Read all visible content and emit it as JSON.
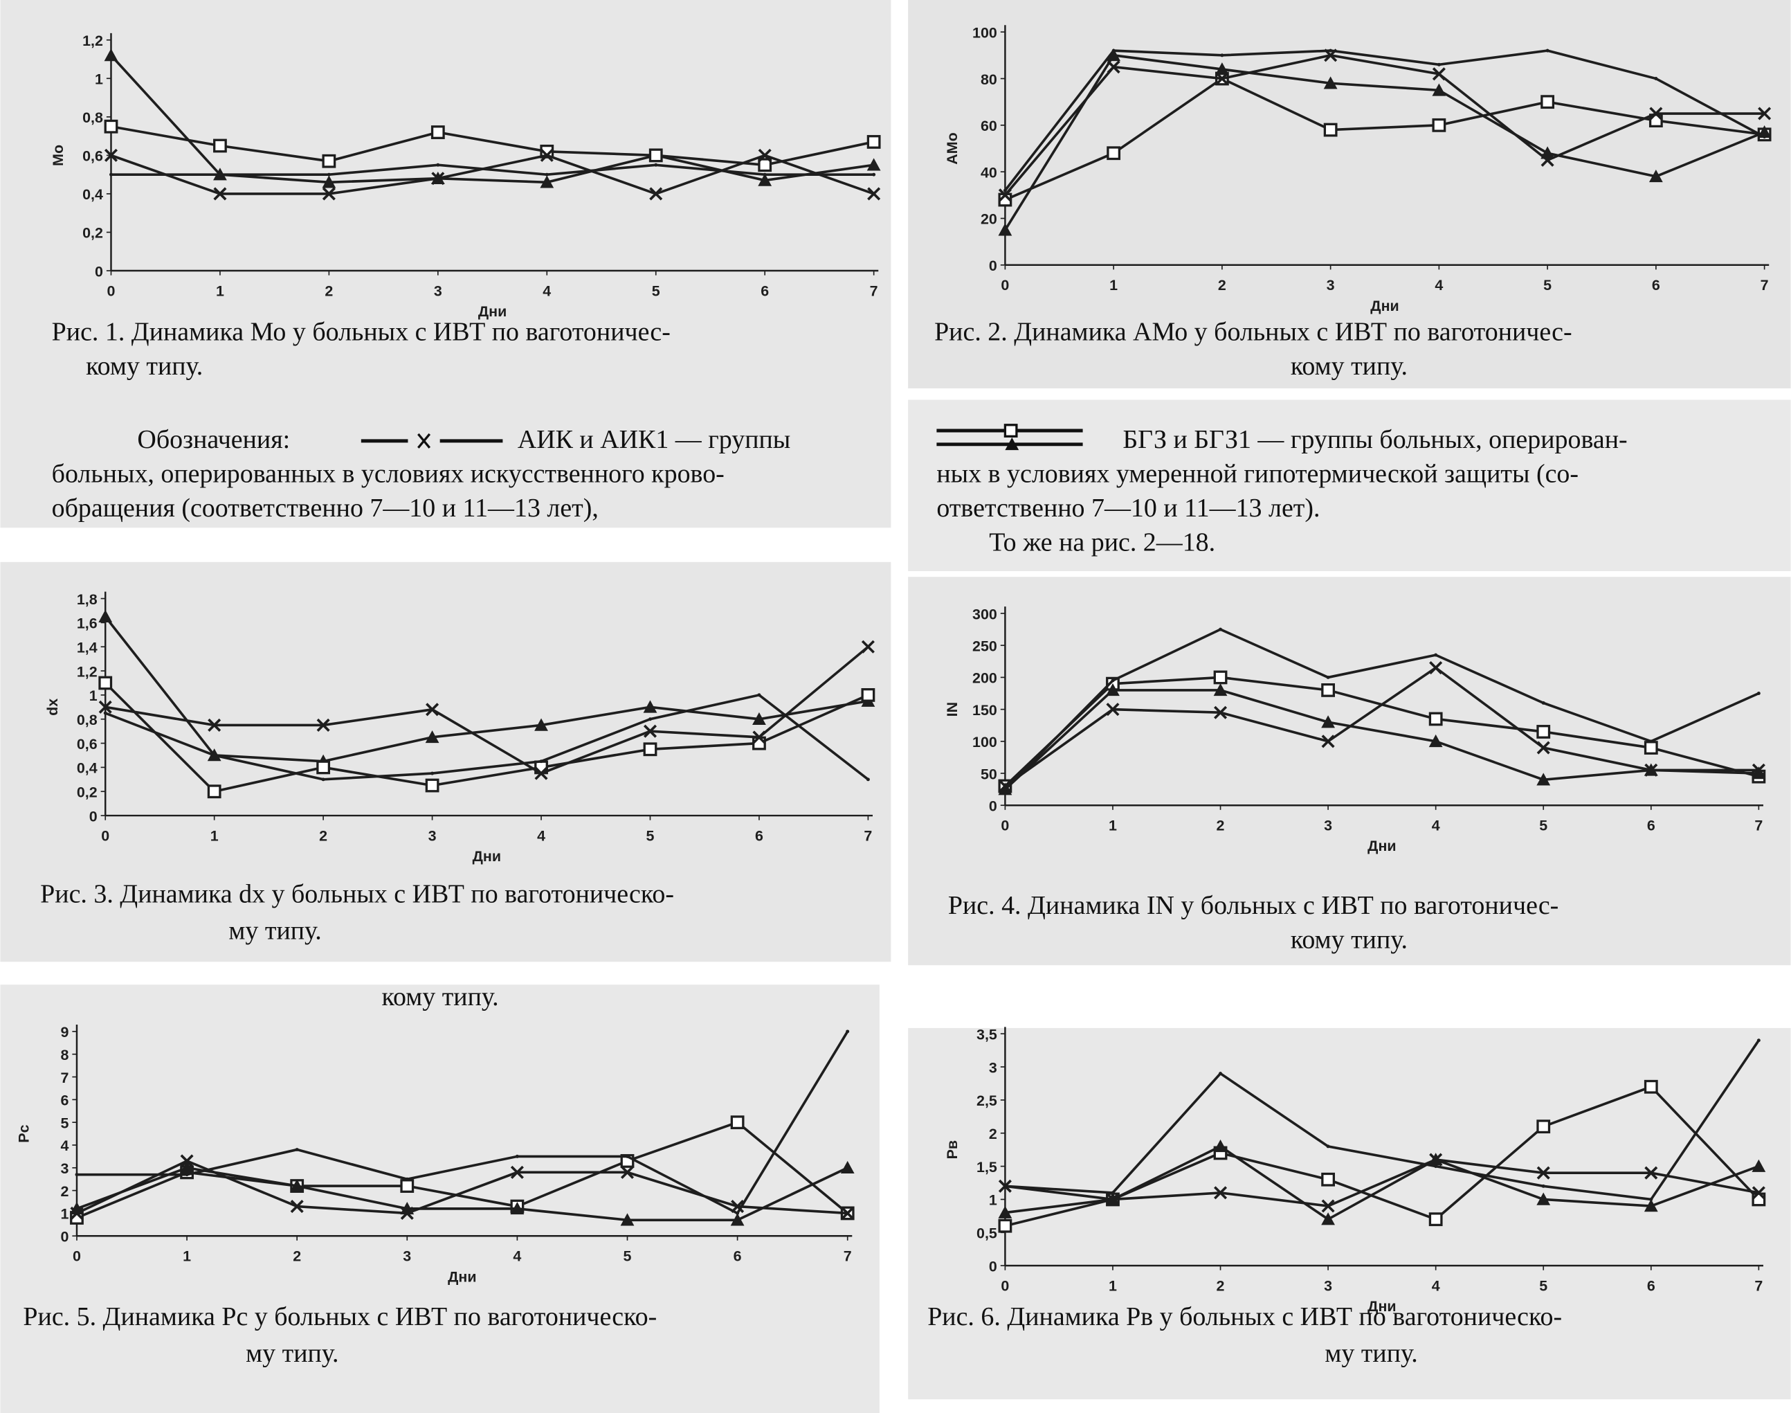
{
  "chart_data": [
    {
      "type": "line",
      "xlabel": "Дни",
      "ylabel": "Мо",
      "caption": [
        "Рис. 1. Динамика Мо у больных с ИВТ по ваготоничес-",
        "кому типу."
      ],
      "x": [
        0,
        1,
        2,
        3,
        4,
        5,
        6,
        7
      ],
      "xlim": [
        0,
        7
      ],
      "xticks": [
        0,
        1,
        2,
        3,
        4,
        5,
        6,
        7
      ],
      "ylim": [
        0,
        1.2
      ],
      "yticks": [
        0,
        {
          "value": 0.2,
          "label": "0,2"
        },
        {
          "value": 0.4,
          "label": "0,4"
        },
        {
          "value": 0.6,
          "label": "0,6"
        },
        {
          "value": 0.8,
          "label": "0,8"
        },
        1,
        {
          "value": 1.2,
          "label": "1,2"
        }
      ],
      "color": "#1e1e1e",
      "series": [
        {
          "marker": "triangle",
          "values": [
            1.12,
            0.5,
            0.46,
            0.48,
            0.46,
            0.6,
            0.47,
            0.55
          ]
        },
        {
          "marker": "square",
          "values": [
            0.75,
            0.65,
            0.57,
            0.72,
            0.62,
            0.6,
            0.55,
            0.67
          ]
        },
        {
          "marker": "x",
          "values": [
            0.6,
            0.4,
            0.4,
            0.48,
            0.6,
            0.4,
            0.6,
            0.4
          ]
        },
        {
          "marker": "none",
          "values": [
            0.5,
            0.5,
            0.5,
            0.55,
            0.5,
            0.55,
            0.5,
            0.5
          ]
        }
      ]
    },
    {
      "type": "line",
      "xlabel": "Дни",
      "ylabel": "АМо",
      "caption": [
        "Рис. 2. Динамика АМо у больных с ИВТ по ваготоничес-",
        "кому типу."
      ],
      "x": [
        0,
        1,
        2,
        3,
        4,
        5,
        6,
        7
      ],
      "xlim": [
        0,
        7
      ],
      "xticks": [
        0,
        1,
        2,
        3,
        4,
        5,
        6,
        7
      ],
      "ylim": [
        0,
        100
      ],
      "yticks": [
        0,
        20,
        40,
        60,
        80,
        100
      ],
      "color": "#1e1e1e",
      "series": [
        {
          "marker": "square",
          "values": [
            28,
            48,
            80,
            58,
            60,
            70,
            62,
            56
          ]
        },
        {
          "marker": "triangle",
          "values": [
            15,
            90,
            84,
            78,
            75,
            48,
            38,
            57
          ]
        },
        {
          "marker": "x",
          "values": [
            30,
            85,
            80,
            90,
            82,
            45,
            65,
            65
          ]
        },
        {
          "marker": "none",
          "values": [
            32,
            92,
            90,
            92,
            86,
            92,
            80,
            55
          ]
        }
      ]
    },
    {
      "type": "line",
      "xlabel": "Дни",
      "ylabel": "dx",
      "caption": [
        "Рис. 3. Динамика dx у больных с ИВТ по ваготоническо-",
        "му типу."
      ],
      "x": [
        0,
        1,
        2,
        3,
        4,
        5,
        6,
        7
      ],
      "xlim": [
        0,
        7
      ],
      "xticks": [
        0,
        1,
        2,
        3,
        4,
        5,
        6,
        7
      ],
      "ylim": [
        0,
        1.8
      ],
      "yticks": [
        0,
        {
          "value": 0.2,
          "label": "0,2"
        },
        {
          "value": 0.4,
          "label": "0,4"
        },
        {
          "value": 0.6,
          "label": "0,6"
        },
        {
          "value": 0.8,
          "label": "0,8"
        },
        1,
        {
          "value": 1.2,
          "label": "1,2"
        },
        {
          "value": 1.4,
          "label": "1,4"
        },
        {
          "value": 1.6,
          "label": "1,6"
        },
        {
          "value": 1.8,
          "label": "1,8"
        }
      ],
      "color": "#1e1e1e",
      "series": [
        {
          "marker": "triangle",
          "values": [
            1.65,
            0.5,
            0.45,
            0.65,
            0.75,
            0.9,
            0.8,
            0.95
          ]
        },
        {
          "marker": "square",
          "values": [
            1.1,
            0.2,
            0.4,
            0.25,
            0.4,
            0.55,
            0.6,
            1.0
          ]
        },
        {
          "marker": "x",
          "values": [
            0.9,
            0.75,
            0.75,
            0.88,
            0.35,
            0.7,
            0.65,
            1.4
          ]
        },
        {
          "marker": "none",
          "values": [
            0.85,
            0.5,
            0.3,
            0.35,
            0.45,
            0.8,
            1.0,
            0.3
          ]
        }
      ]
    },
    {
      "type": "line",
      "xlabel": "Дни",
      "ylabel": "IN",
      "caption": [
        "Рис. 4. Динамика IN у больных с ИВТ по ваготоничес-",
        "кому типу."
      ],
      "x": [
        0,
        1,
        2,
        3,
        4,
        5,
        6,
        7
      ],
      "xlim": [
        0,
        7
      ],
      "xticks": [
        0,
        1,
        2,
        3,
        4,
        5,
        6,
        7
      ],
      "ylim": [
        0,
        300
      ],
      "yticks": [
        0,
        50,
        100,
        150,
        200,
        250,
        300
      ],
      "color": "#1e1e1e",
      "series": [
        {
          "marker": "square",
          "values": [
            30,
            190,
            200,
            180,
            135,
            115,
            90,
            45
          ]
        },
        {
          "marker": "triangle",
          "values": [
            25,
            180,
            180,
            130,
            100,
            40,
            55,
            50
          ]
        },
        {
          "marker": "x",
          "values": [
            30,
            150,
            145,
            100,
            215,
            90,
            55,
            55
          ]
        },
        {
          "marker": "none",
          "values": [
            25,
            195,
            275,
            200,
            235,
            160,
            100,
            175
          ]
        }
      ]
    },
    {
      "type": "line",
      "xlabel": "Дни",
      "ylabel": "Рс",
      "caption": [
        "Рис. 5. Динамика Рс у больных с ИВТ по ваготоническо-",
        "му типу."
      ],
      "x": [
        0,
        1,
        2,
        3,
        4,
        5,
        6,
        7
      ],
      "xlim": [
        0,
        7
      ],
      "xticks": [
        0,
        1,
        2,
        3,
        4,
        5,
        6,
        7
      ],
      "ylim": [
        0,
        9
      ],
      "yticks": [
        0,
        1,
        2,
        3,
        4,
        5,
        6,
        7,
        8,
        9
      ],
      "color": "#1e1e1e",
      "series": [
        {
          "marker": "square",
          "values": [
            0.8,
            2.8,
            2.2,
            2.2,
            1.3,
            3.3,
            5,
            1
          ]
        },
        {
          "marker": "triangle",
          "values": [
            1.2,
            3,
            2.2,
            1.2,
            1.2,
            0.7,
            0.7,
            3
          ]
        },
        {
          "marker": "x",
          "values": [
            1,
            3.3,
            1.3,
            1,
            2.8,
            2.8,
            1.3,
            1
          ]
        },
        {
          "marker": "none",
          "values": [
            2.7,
            2.7,
            3.8,
            2.5,
            3.5,
            3.5,
            1,
            9
          ]
        }
      ]
    },
    {
      "type": "line",
      "xlabel": "Дни",
      "ylabel": "Рв",
      "caption": [
        "Рис. 6. Динамика Рв у больных с ИВТ по ваготоническо-",
        "му типу."
      ],
      "x": [
        0,
        1,
        2,
        3,
        4,
        5,
        6,
        7
      ],
      "xlim": [
        0,
        7
      ],
      "xticks": [
        0,
        1,
        2,
        3,
        4,
        5,
        6,
        7
      ],
      "ylim": [
        0,
        3.5
      ],
      "yticks": [
        0,
        {
          "value": 0.5,
          "label": "0,5"
        },
        1,
        {
          "value": 1.5,
          "label": "1,5"
        },
        2,
        {
          "value": 2.5,
          "label": "2,5"
        },
        3,
        {
          "value": 3.5,
          "label": "3,5"
        }
      ],
      "color": "#1e1e1e",
      "series": [
        {
          "marker": "square",
          "values": [
            0.6,
            1,
            1.7,
            1.3,
            0.7,
            2.1,
            2.7,
            1
          ]
        },
        {
          "marker": "triangle",
          "values": [
            0.8,
            1,
            1.8,
            0.7,
            1.6,
            1,
            0.9,
            1.5
          ]
        },
        {
          "marker": "x",
          "values": [
            1.2,
            1,
            1.1,
            0.9,
            1.6,
            1.4,
            1.4,
            1.1
          ]
        },
        {
          "marker": "none",
          "values": [
            1.2,
            1.1,
            2.9,
            1.8,
            1.5,
            1.2,
            1,
            3.4
          ]
        }
      ]
    }
  ],
  "legend": {
    "intro": "Обозначения:",
    "left_lines": [
      "АИК и АИК1 — группы",
      "больных, оперированных в условиях искусственного крово-",
      "обращения (соответственно 7—10 и 11—13 лет),"
    ],
    "right_lines": [
      "БГЗ и БГЗ1 — группы больных, оперирован-",
      "ных в условиях умеренной гипотермической защиты (со-",
      "ответственно 7—10 и 11—13 лет)."
    ],
    "note": "То же на рис. 2—18."
  },
  "stray_text": "кому типу."
}
